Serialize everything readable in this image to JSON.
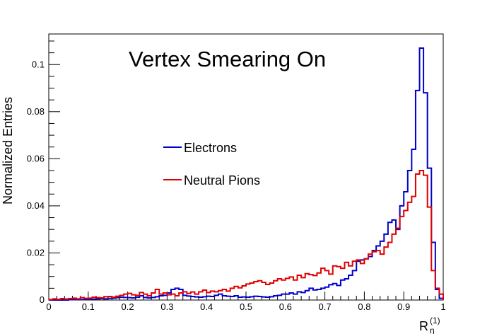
{
  "chart_data": {
    "type": "histogram",
    "title": "Vertex Smearing On",
    "xlabel": "R",
    "xlabel_subscript": "η",
    "xlabel_superscript": "(1)",
    "ylabel": "Normalized Entries",
    "xlim": [
      0,
      1
    ],
    "ylim": [
      0,
      0.113
    ],
    "x_ticks": [
      "0",
      "0.1",
      "0.2",
      "0.3",
      "0.4",
      "0.5",
      "0.6",
      "0.7",
      "0.8",
      "0.9",
      "1"
    ],
    "y_ticks": [
      "0",
      "0.02",
      "0.04",
      "0.06",
      "0.08",
      "0.1"
    ],
    "grid": false,
    "legend_position": "center-left",
    "colors": {
      "Electrons": "#0000cc",
      "Neutral Pions": "#e00000"
    },
    "bin_width": 0.01,
    "series": [
      {
        "name": "Electrons",
        "values": [
          0,
          0,
          0,
          0,
          0,
          0.0002,
          0.0002,
          0.0003,
          0.0002,
          0.0003,
          0.0003,
          0.0004,
          0.0005,
          0.0006,
          0.0005,
          0.0007,
          0.0008,
          0.001,
          0.0012,
          0.0011,
          0.001,
          0.0009,
          0.0012,
          0.0018,
          0.0011,
          0.0009,
          0.0011,
          0.0014,
          0.0018,
          0.002,
          0.003,
          0.0045,
          0.005,
          0.0045,
          0.002,
          0.0017,
          0.0015,
          0.0013,
          0.0012,
          0.0014,
          0.0016,
          0.0015,
          0.002,
          0.0025,
          0.0018,
          0.0016,
          0.0015,
          0.0018,
          0.0012,
          0.0013,
          0.0012,
          0.0014,
          0.0016,
          0.0015,
          0.0013,
          0.0012,
          0.0014,
          0.0018,
          0.002,
          0.0025,
          0.0025,
          0.003,
          0.0025,
          0.0035,
          0.0032,
          0.004,
          0.005,
          0.0043,
          0.0045,
          0.005,
          0.0055,
          0.0065,
          0.007,
          0.0062,
          0.0085,
          0.009,
          0.0105,
          0.0125,
          0.0165,
          0.017,
          0.0175,
          0.0185,
          0.021,
          0.023,
          0.025,
          0.028,
          0.033,
          0.034,
          0.03,
          0.04,
          0.046,
          0.055,
          0.064,
          0.089,
          0.107,
          0.088,
          0.056,
          0.0245,
          0.0045,
          0.0007
        ]
      },
      {
        "name": "Neutral Pions",
        "values": [
          0.0002,
          0.0005,
          0.0003,
          0.0006,
          0.0004,
          0.0006,
          0.0008,
          0.0005,
          0.001,
          0.0007,
          0.0008,
          0.0012,
          0.001,
          0.0009,
          0.0014,
          0.0015,
          0.0012,
          0.0016,
          0.002,
          0.0025,
          0.0028,
          0.0022,
          0.002,
          0.0032,
          0.0025,
          0.0018,
          0.003,
          0.0045,
          0.0025,
          0.003,
          0.0022,
          0.0025,
          0.0018,
          0.003,
          0.0035,
          0.0028,
          0.0034,
          0.0025,
          0.0035,
          0.0042,
          0.0032,
          0.0038,
          0.0035,
          0.004,
          0.0045,
          0.0038,
          0.005,
          0.0058,
          0.0052,
          0.006,
          0.0068,
          0.0072,
          0.0078,
          0.0082,
          0.0075,
          0.0066,
          0.0072,
          0.0082,
          0.009,
          0.0085,
          0.0092,
          0.0098,
          0.0085,
          0.0105,
          0.0095,
          0.0112,
          0.0108,
          0.0104,
          0.0115,
          0.0135,
          0.0125,
          0.011,
          0.0145,
          0.0142,
          0.0135,
          0.016,
          0.0145,
          0.0165,
          0.017,
          0.0155,
          0.0175,
          0.0195,
          0.0205,
          0.021,
          0.0195,
          0.0225,
          0.0245,
          0.028,
          0.0305,
          0.0355,
          0.038,
          0.0415,
          0.044,
          0.0535,
          0.055,
          0.053,
          0.0395,
          0.0125,
          0.005,
          0.0025
        ]
      }
    ]
  }
}
